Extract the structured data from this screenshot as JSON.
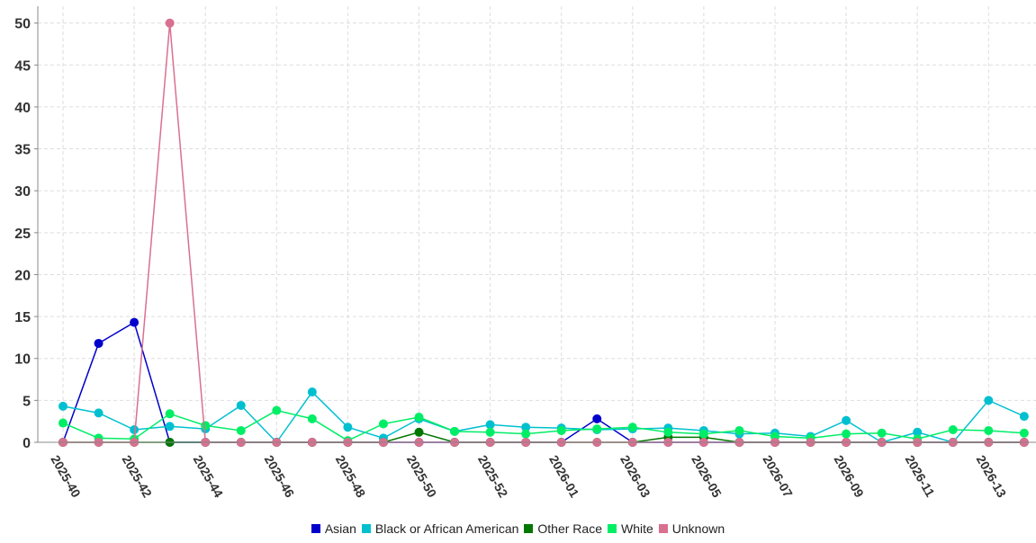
{
  "chart_data": {
    "type": "line",
    "x": [
      "2025-40",
      "2025-41",
      "2025-42",
      "2025-43",
      "2025-44",
      "2025-45",
      "2025-46",
      "2025-47",
      "2025-48",
      "2025-49",
      "2025-50",
      "2025-51",
      "2025-52",
      "2025-53",
      "2026-01",
      "2026-02",
      "2026-03",
      "2026-04",
      "2026-05",
      "2026-06",
      "2026-07",
      "2026-08",
      "2026-09",
      "2026-10",
      "2026-11",
      "2026-12",
      "2026-13",
      "2026-14"
    ],
    "x_tick_labels": [
      "2025-40",
      "2025-42",
      "2025-44",
      "2025-46",
      "2025-48",
      "2025-50",
      "2025-52",
      "2026-01",
      "2026-03",
      "2026-05",
      "2026-07",
      "2026-09",
      "2026-11",
      "2026-13"
    ],
    "y_ticks": [
      0,
      5,
      10,
      15,
      20,
      25,
      30,
      35,
      40,
      45,
      50
    ],
    "ylim": [
      0,
      52
    ],
    "grid": true,
    "legend_position": "bottom",
    "series": [
      {
        "name": "Asian",
        "color": "#0000cc",
        "values": [
          0,
          11.8,
          14.3,
          0,
          0,
          0,
          0,
          0,
          0,
          0,
          0,
          0,
          0,
          0,
          0,
          2.8,
          0,
          0,
          0,
          0,
          0,
          0,
          0,
          0,
          0,
          0,
          0,
          0
        ]
      },
      {
        "name": "Black or African American",
        "color": "#00c0d0",
        "values": [
          4.3,
          3.5,
          1.5,
          1.9,
          1.6,
          4.4,
          0,
          6.0,
          1.8,
          0.5,
          2.8,
          1.3,
          2.1,
          1.8,
          1.7,
          1.5,
          1.6,
          1.7,
          1.4,
          1.0,
          1.1,
          0.7,
          2.6,
          0,
          1.2,
          0,
          5.0,
          3.1
        ]
      },
      {
        "name": "Other Race",
        "color": "#007700",
        "values": [
          0,
          0,
          0,
          0,
          0,
          0,
          0,
          0,
          0,
          0,
          1.2,
          0,
          0,
          0,
          0,
          0,
          0,
          0.6,
          0.6,
          0,
          0,
          0,
          0,
          0,
          0,
          0,
          0,
          0
        ]
      },
      {
        "name": "White",
        "color": "#00ee66",
        "values": [
          2.3,
          0.5,
          0.4,
          3.4,
          2.0,
          1.4,
          3.8,
          2.8,
          0.2,
          2.2,
          3.0,
          1.3,
          1.2,
          1.0,
          1.4,
          1.6,
          1.8,
          1.2,
          1.0,
          1.4,
          0.7,
          0.5,
          1.0,
          1.1,
          0.4,
          1.5,
          1.4,
          1.1
        ]
      },
      {
        "name": "Unknown",
        "color": "#d97090",
        "values": [
          0,
          0,
          0,
          50,
          0,
          0,
          0,
          0,
          0,
          0,
          0,
          0,
          0,
          0,
          0,
          0,
          0,
          0,
          0,
          0,
          0,
          0,
          0,
          0,
          0,
          0,
          0,
          0
        ]
      }
    ]
  }
}
